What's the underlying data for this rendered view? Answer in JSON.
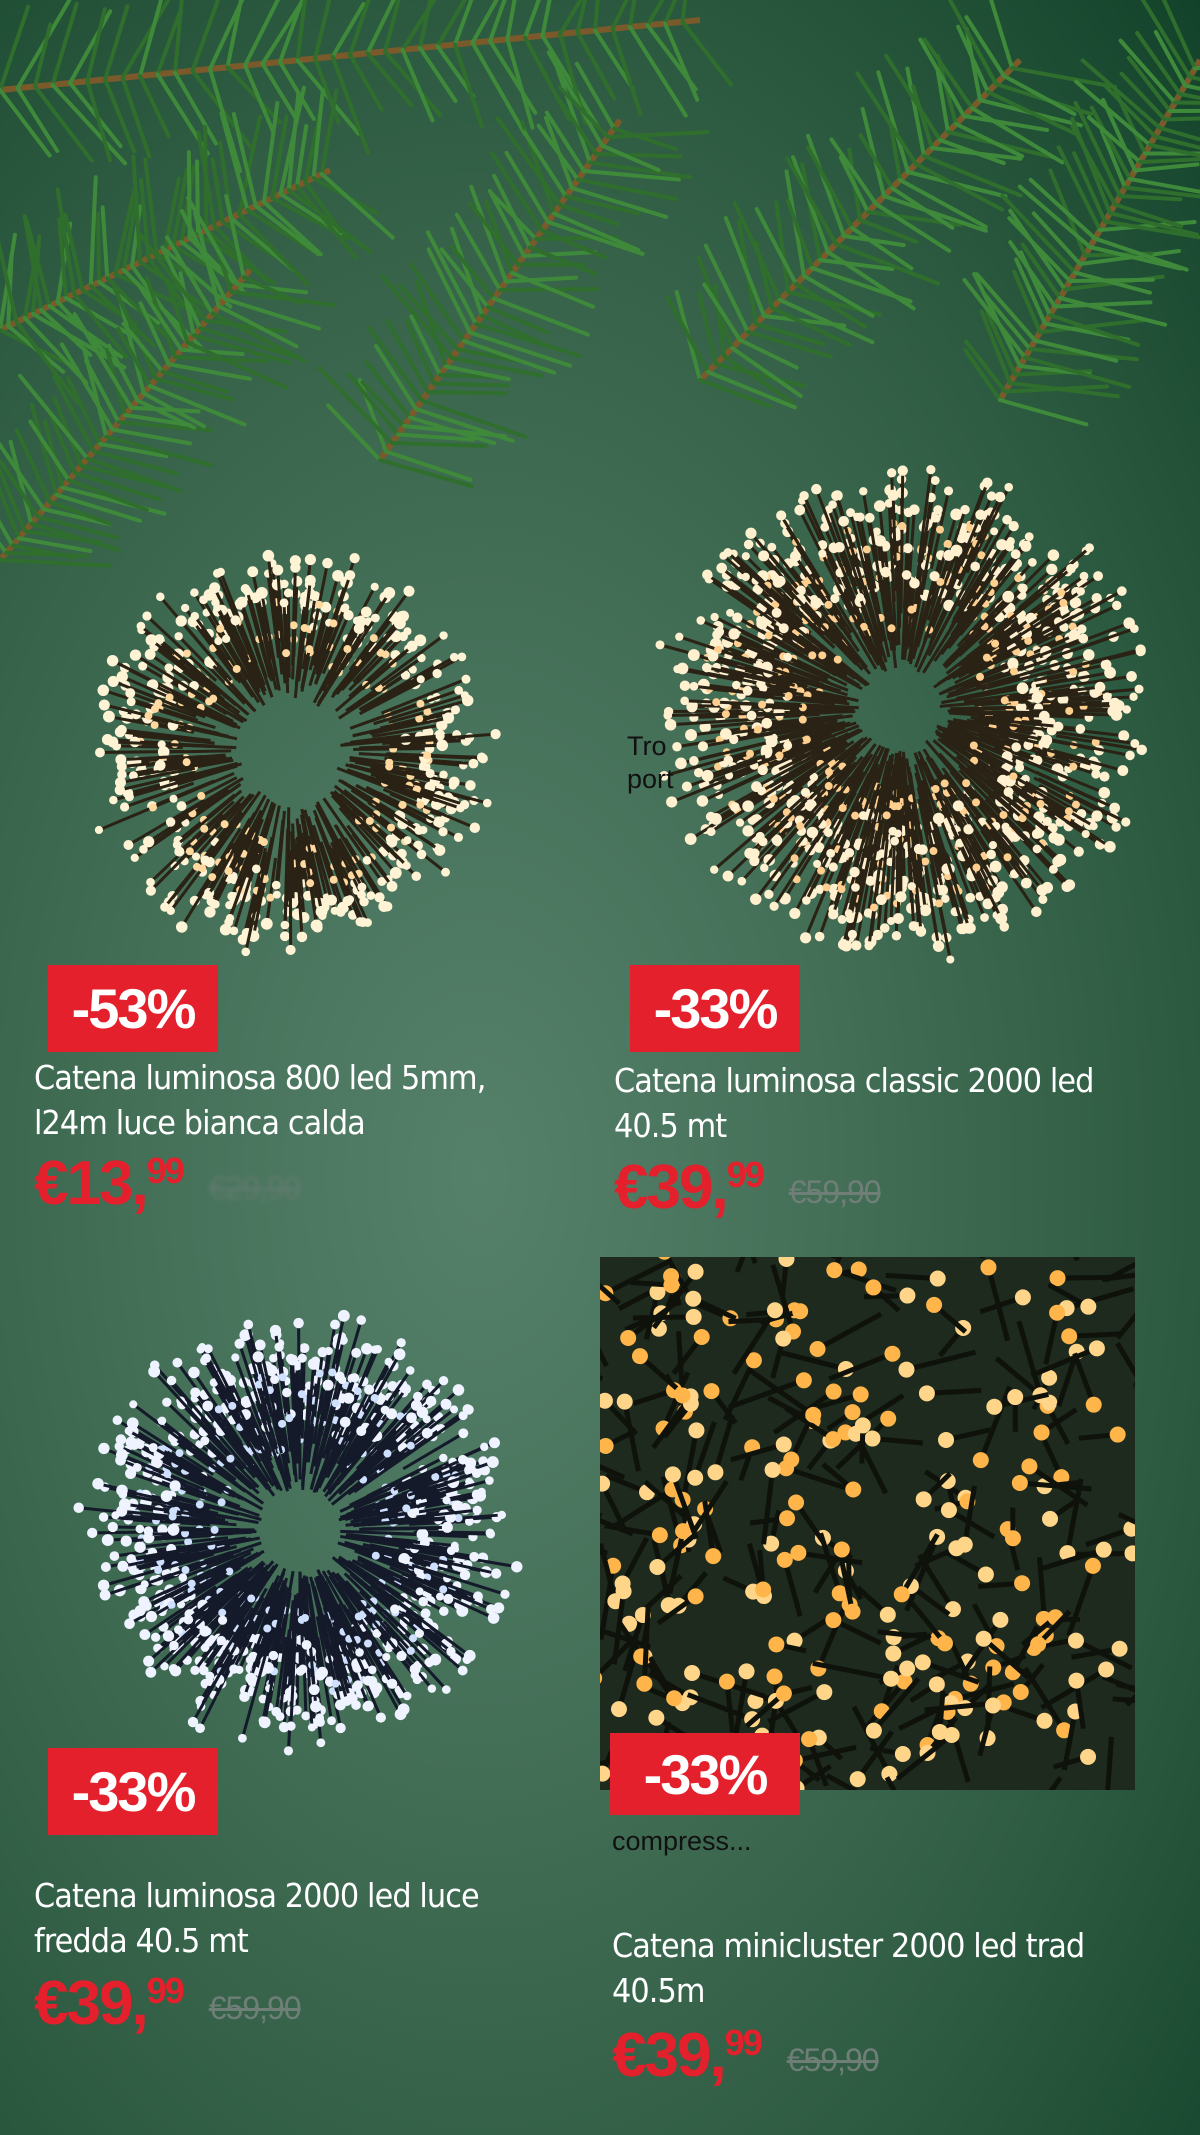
{
  "colors": {
    "accent": "#e3202b",
    "background": "#3f6d52"
  },
  "overlay_fragments": {
    "top": "Tro",
    "top2": "port",
    "bottom": "compress..."
  },
  "products": [
    {
      "discount": "-53%",
      "title_line1": "Catena luminosa 800 led 5mm,",
      "title_line2": "l24m luce bianca calda",
      "price_main": "€13,",
      "price_cents": "99",
      "old_price": "€29,90",
      "light_color": "warm-white"
    },
    {
      "discount": "-33%",
      "title_line1": "Catena luminosa classic 2000 led",
      "title_line2": "40.5 mt",
      "price_main": "€39,",
      "price_cents": "99",
      "old_price": "€59,90",
      "light_color": "warm-white"
    },
    {
      "discount": "-33%",
      "title_line1": "Catena luminosa 2000 led luce",
      "title_line2": "fredda 40.5 mt",
      "price_main": "€39,",
      "price_cents": "99",
      "old_price": "€59,90",
      "light_color": "cold-white"
    },
    {
      "discount": "-33%",
      "title_line1": "Catena minicluster 2000 led trad",
      "title_line2": "40.5m",
      "price_main": "€39,",
      "price_cents": "99",
      "old_price": "€59,90",
      "light_color": "traditional"
    }
  ]
}
